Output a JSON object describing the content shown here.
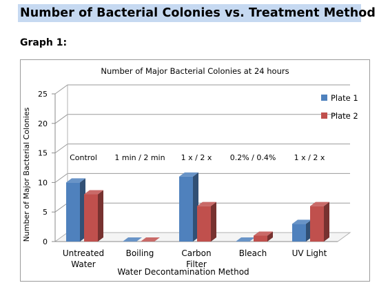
{
  "header": {
    "title": "Number of Bacterial Colonies vs. Treatment Method",
    "graph_label": "Graph 1:"
  },
  "colors": {
    "plate1": "#4f81bd",
    "plate2": "#c0504d",
    "title_highlight": "#c6d9f1"
  },
  "chart_data": {
    "type": "bar",
    "title": "Number of Major Bacterial Colonies at 24 hours",
    "xlabel": "Water Decontamination Method",
    "ylabel": "Number of Major Bacterial Colonies",
    "ylim": [
      0,
      25
    ],
    "yticks": [
      0,
      5,
      10,
      15,
      20,
      25
    ],
    "categories": [
      "Untreated Water",
      "Boiling",
      "Carbon Filter",
      "Bleach",
      "UV Light"
    ],
    "annotations": [
      "Control",
      "1 min / 2 min",
      "1 x / 2 x",
      "0.2% / 0.4%",
      "1 x / 2 x"
    ],
    "series": [
      {
        "name": "Plate 1",
        "values": [
          10,
          0,
          11,
          0,
          3
        ]
      },
      {
        "name": "Plate 2",
        "values": [
          8,
          0,
          6,
          1,
          6
        ]
      }
    ],
    "grid": true,
    "legend": "right"
  }
}
